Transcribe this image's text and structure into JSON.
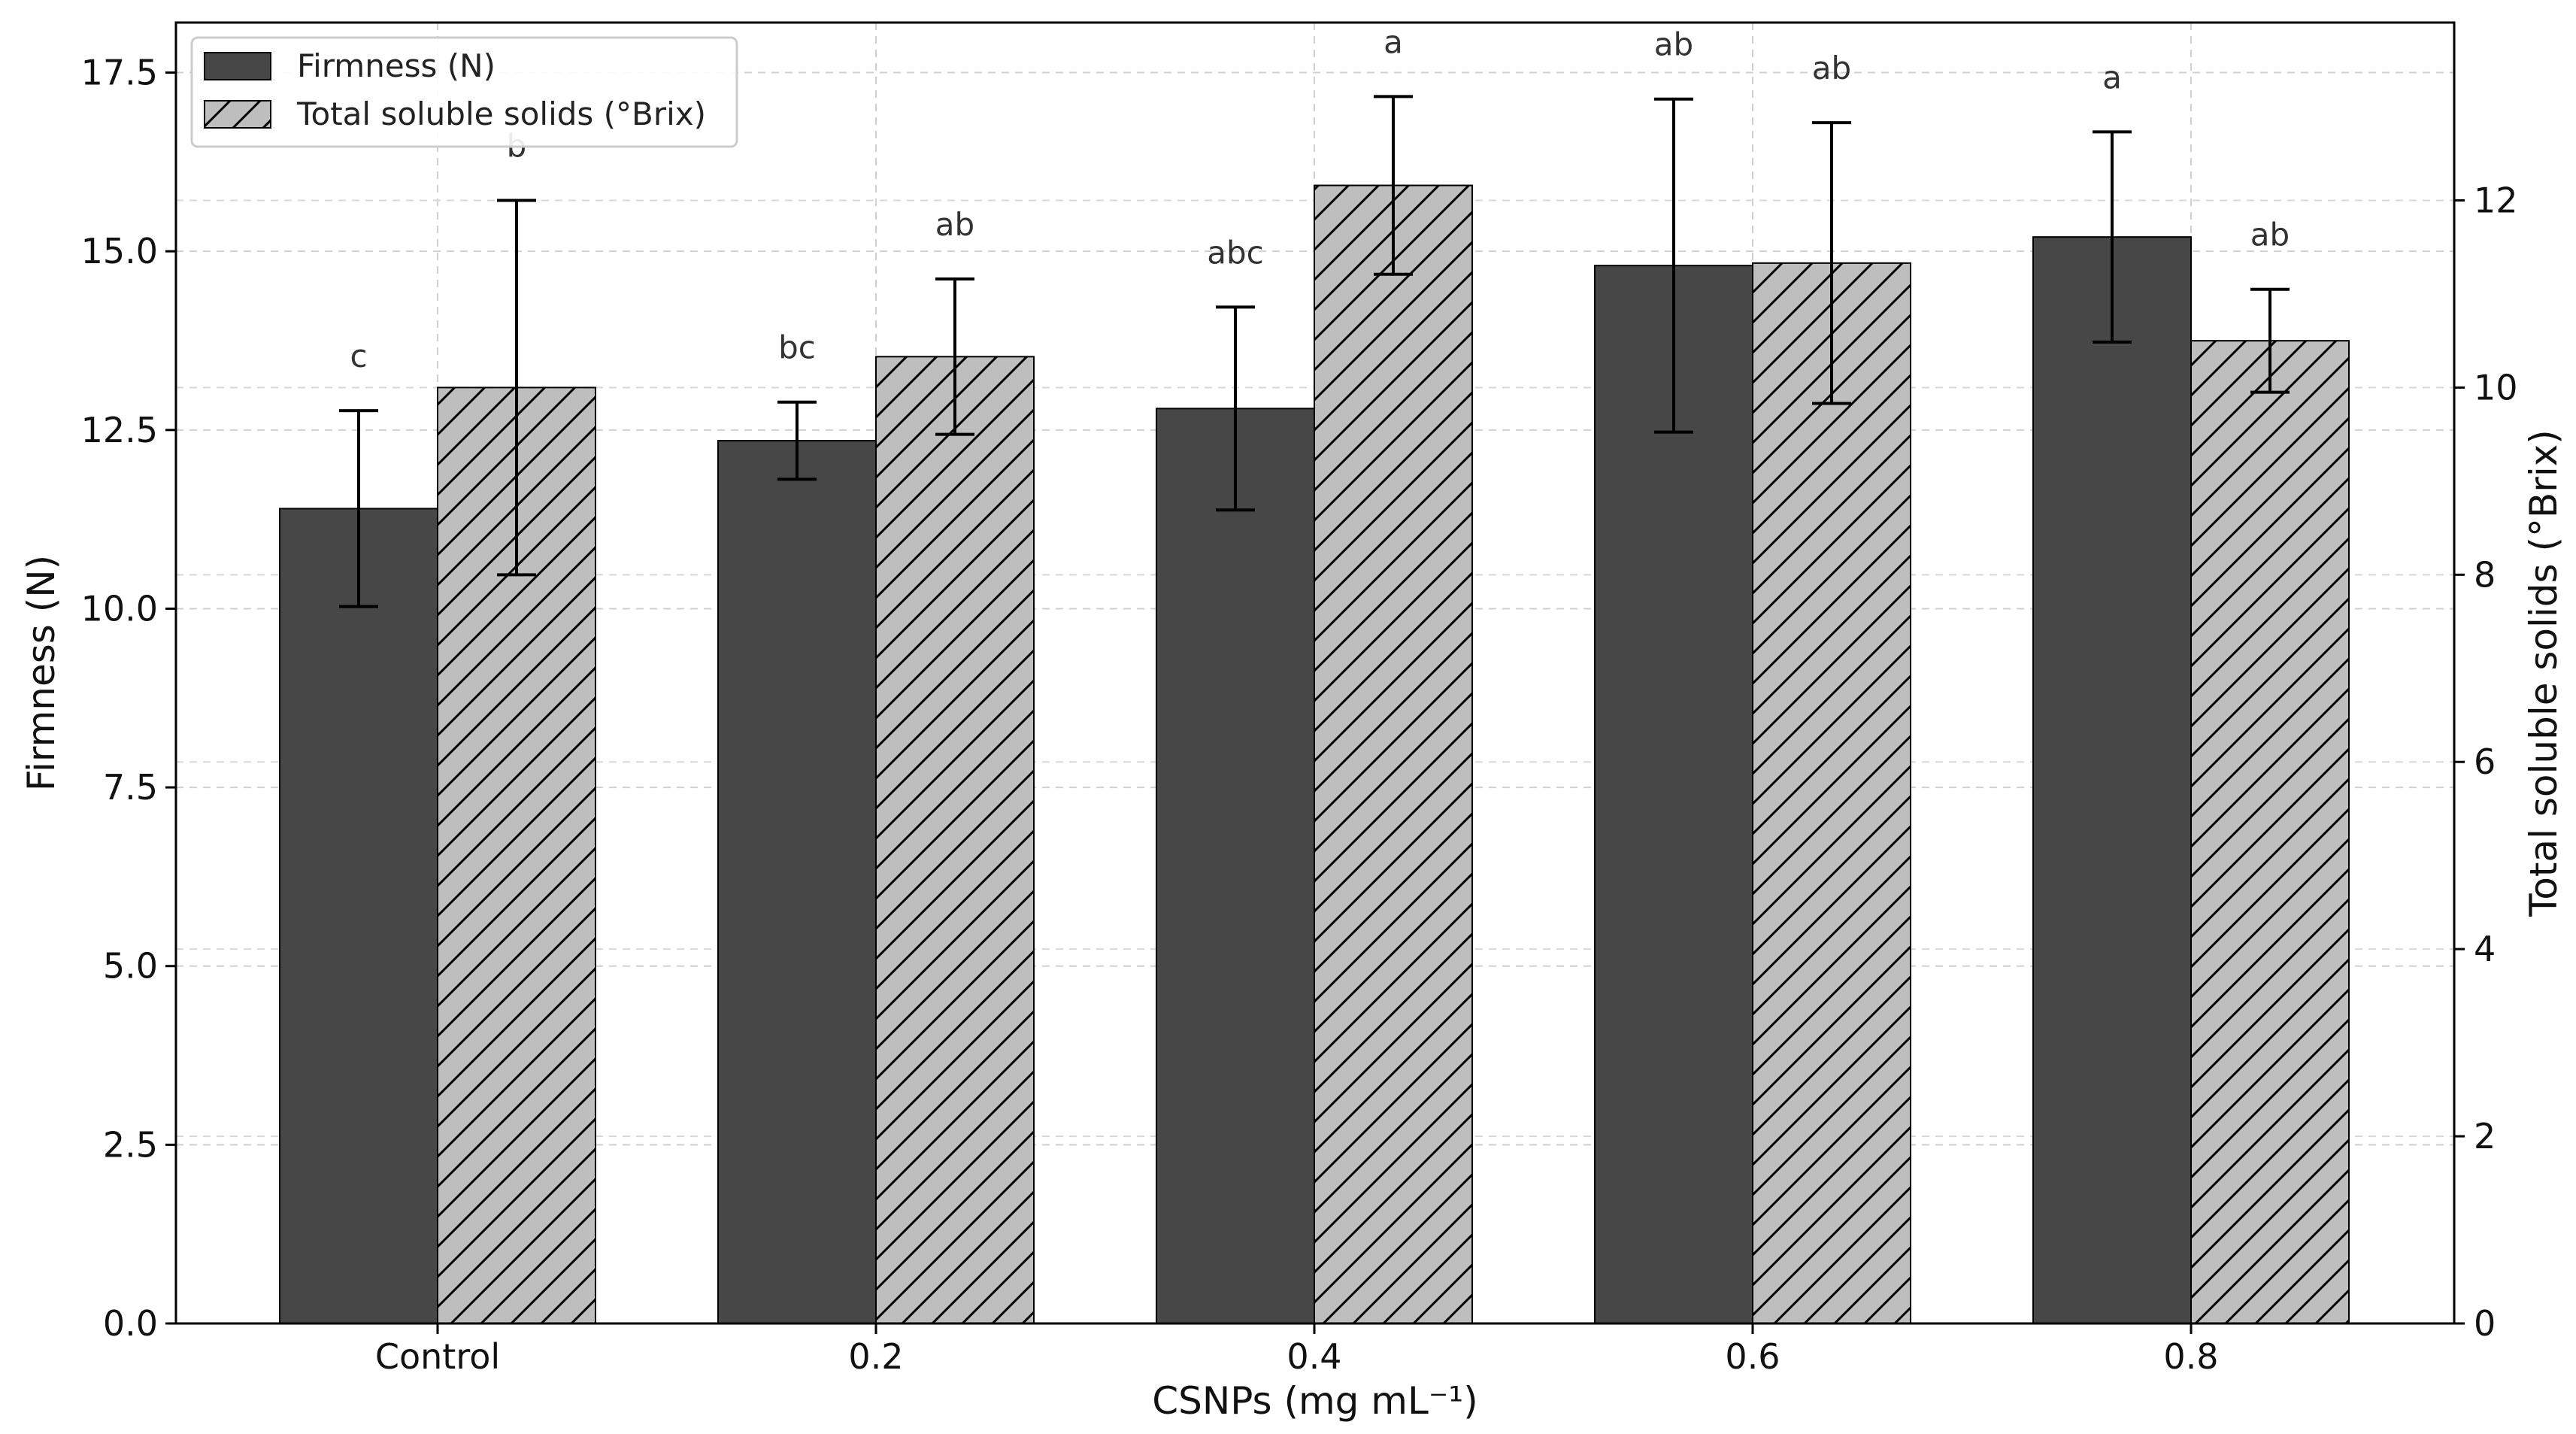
{
  "chart_data": {
    "type": "bar",
    "xlabel": "CSNPs (mg mL⁻¹)",
    "categories": [
      "Control",
      "0.2",
      "0.4",
      "0.6",
      "0.8"
    ],
    "y_left": {
      "label": "Firmness (N)",
      "lim": [
        0,
        18.2
      ],
      "ticks": [
        "0.0",
        "2.5",
        "5.0",
        "7.5",
        "10.0",
        "12.5",
        "15.0",
        "17.5"
      ]
    },
    "y_right": {
      "label": "Total soluble solids (°Brix)",
      "lim": [
        0,
        13.9
      ],
      "ticks": [
        "0",
        "2",
        "4",
        "6",
        "8",
        "10",
        "12"
      ]
    },
    "grid": true,
    "legend_position": "top-left",
    "series": [
      {
        "name": "Firmness (N)",
        "axis": "left",
        "color": "#474747",
        "pattern": "solid",
        "values": [
          11.4,
          12.35,
          12.8,
          14.8,
          15.2
        ],
        "errors": [
          1.37,
          0.54,
          1.42,
          2.33,
          1.47
        ],
        "letters": [
          "c",
          "bc",
          "abc",
          "ab",
          "a"
        ]
      },
      {
        "name": "Total soluble solids (°Brix)",
        "axis": "right",
        "color": "#bebebe",
        "pattern": "diagonal-hatch",
        "values": [
          10.0,
          10.33,
          12.16,
          11.33,
          10.5
        ],
        "errors": [
          2.0,
          0.83,
          0.95,
          1.5,
          0.55
        ],
        "letters": [
          "b",
          "ab",
          "a",
          "ab",
          "ab"
        ]
      }
    ]
  }
}
